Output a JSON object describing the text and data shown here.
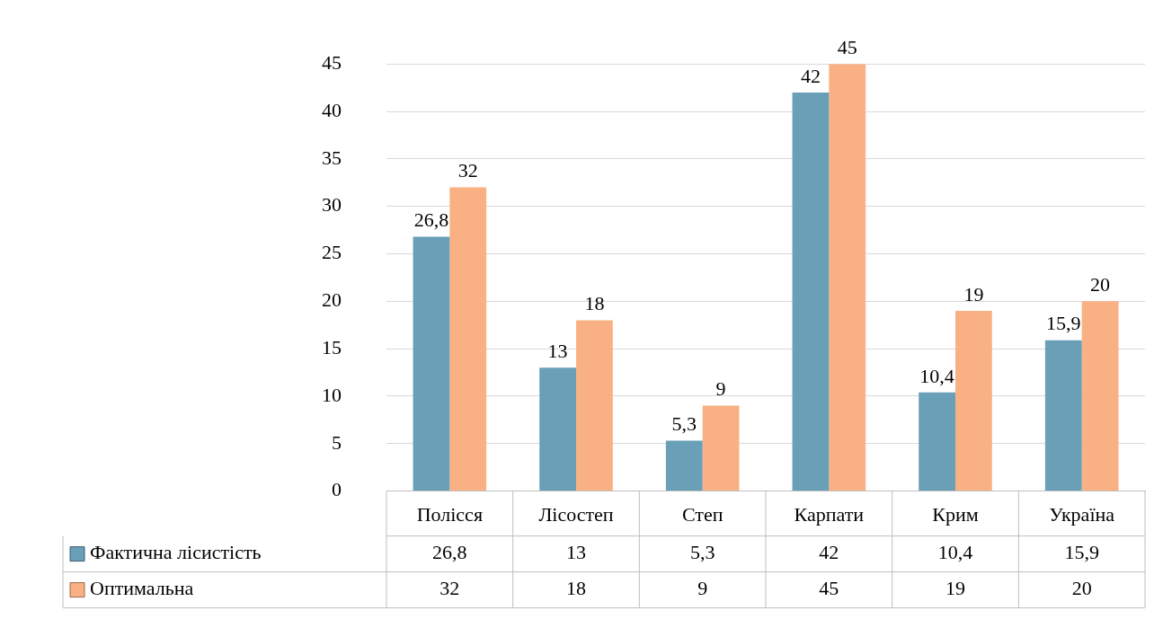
{
  "chart_data": {
    "type": "bar",
    "categories": [
      "Полісся",
      "Лісостеп",
      "Степ",
      "Карпати",
      "Крим",
      "Україна"
    ],
    "series": [
      {
        "name": "Фактична лісистість",
        "color": "#6a9fb8",
        "values": [
          26.8,
          13,
          5.3,
          42,
          10.4,
          15.9
        ],
        "value_labels": [
          "26,8",
          "13",
          "5,3",
          "42",
          "10,4",
          "15,9"
        ]
      },
      {
        "name": "Оптимальна",
        "color": "#f9b183",
        "values": [
          32,
          18,
          9,
          45,
          19,
          20
        ],
        "value_labels": [
          "32",
          "18",
          "9",
          "45",
          "19",
          "20"
        ]
      }
    ],
    "ylim": [
      0,
      45
    ],
    "yticks": [
      0,
      5,
      10,
      15,
      20,
      25,
      30,
      35,
      40,
      45
    ],
    "grid": "y",
    "legend": "bottom"
  }
}
